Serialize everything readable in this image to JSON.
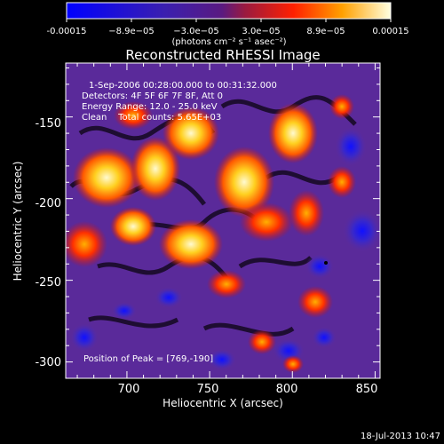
{
  "colorbar": {
    "tick_labels": [
      "-0.00015",
      "−8.9e−05",
      "−3.0e−05",
      "3.0e−05",
      "8.9e−05",
      "0.00015"
    ],
    "unit_label": "(photons cm⁻² s⁻¹ asec⁻²)"
  },
  "plot": {
    "title": "Reconstructed RHESSI Image",
    "info_lines": [
      "1-Sep-2006 00:28:00.000 to 00:31:32.000",
      "Detectors: 4F 5F 6F 7F 8F, Att 0",
      "Energy Range: 12.0 - 25.0 keV",
      "Clean    Total counts: 5.65E+03"
    ],
    "peak_label": "Position of Peak = [769,-190]",
    "xlabel": "Heliocentric X (arcsec)",
    "ylabel": "Heliocentric Y (arcsec)",
    "x_ticks": [
      "700",
      "750",
      "800",
      "850"
    ],
    "y_ticks": [
      "-150",
      "-200",
      "-250",
      "-300"
    ],
    "x_range": [
      663,
      853
    ],
    "y_range": [
      -310,
      -117
    ]
  },
  "timestamp": "18-Jul-2013 10:47",
  "colors": {
    "background": "#000000",
    "text": "#ffffff",
    "peak_marker": "#000000"
  }
}
